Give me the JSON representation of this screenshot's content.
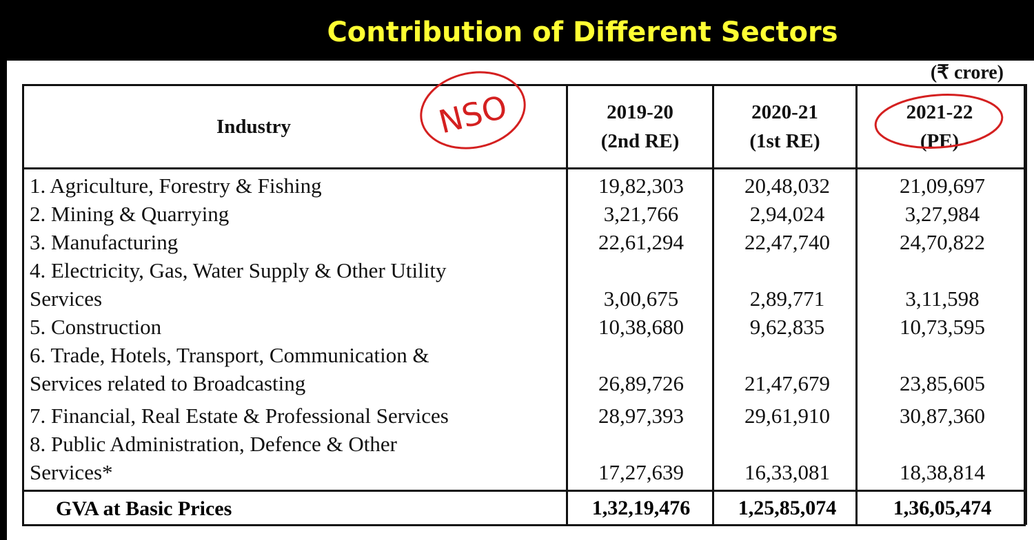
{
  "title": "Contribution of Different Sectors",
  "unit": "(₹ crore)",
  "annotation_text": "NSO",
  "table": {
    "header": {
      "industry": "Industry",
      "columns": [
        {
          "year": "2019-20",
          "type": "(2nd RE)"
        },
        {
          "year": "2020-21",
          "type": "(1st RE)"
        },
        {
          "year": "2021-22",
          "type": "(PE)"
        }
      ]
    },
    "rows": [
      {
        "line1": "1. Agriculture, Forestry & Fishing",
        "line2": "",
        "values": [
          "19,82,303",
          "20,48,032",
          "21,09,697"
        ]
      },
      {
        "line1": "2. Mining & Quarrying",
        "line2": "",
        "values": [
          "3,21,766",
          "2,94,024",
          "3,27,984"
        ]
      },
      {
        "line1": "3. Manufacturing",
        "line2": "",
        "values": [
          "22,61,294",
          "22,47,740",
          "24,70,822"
        ]
      },
      {
        "line1": "4. Electricity, Gas, Water Supply & Other Utility",
        "line2": "Services",
        "values": [
          "3,00,675",
          "2,89,771",
          "3,11,598"
        ]
      },
      {
        "line1": "5. Construction",
        "line2": "",
        "values": [
          "10,38,680",
          "9,62,835",
          "10,73,595"
        ]
      },
      {
        "line1": "6. Trade, Hotels, Transport, Communication &",
        "line2": "Services related to Broadcasting",
        "values": [
          "26,89,726",
          "21,47,679",
          "23,85,605"
        ]
      },
      {
        "line1": "7. Financial, Real Estate & Professional Services",
        "line2": "",
        "values": [
          "28,97,393",
          "29,61,910",
          "30,87,360"
        ]
      },
      {
        "line1": "8. Public Administration, Defence & Other",
        "line2": "Services*",
        "values": [
          "17,27,639",
          "16,33,081",
          "18,38,814"
        ]
      }
    ],
    "total": {
      "label": "GVA at Basic Prices",
      "values": [
        "1,32,19,476",
        "1,25,85,074",
        "1,36,05,474"
      ]
    }
  },
  "colors": {
    "title": "#ffff33",
    "annotation": "#d42020"
  }
}
